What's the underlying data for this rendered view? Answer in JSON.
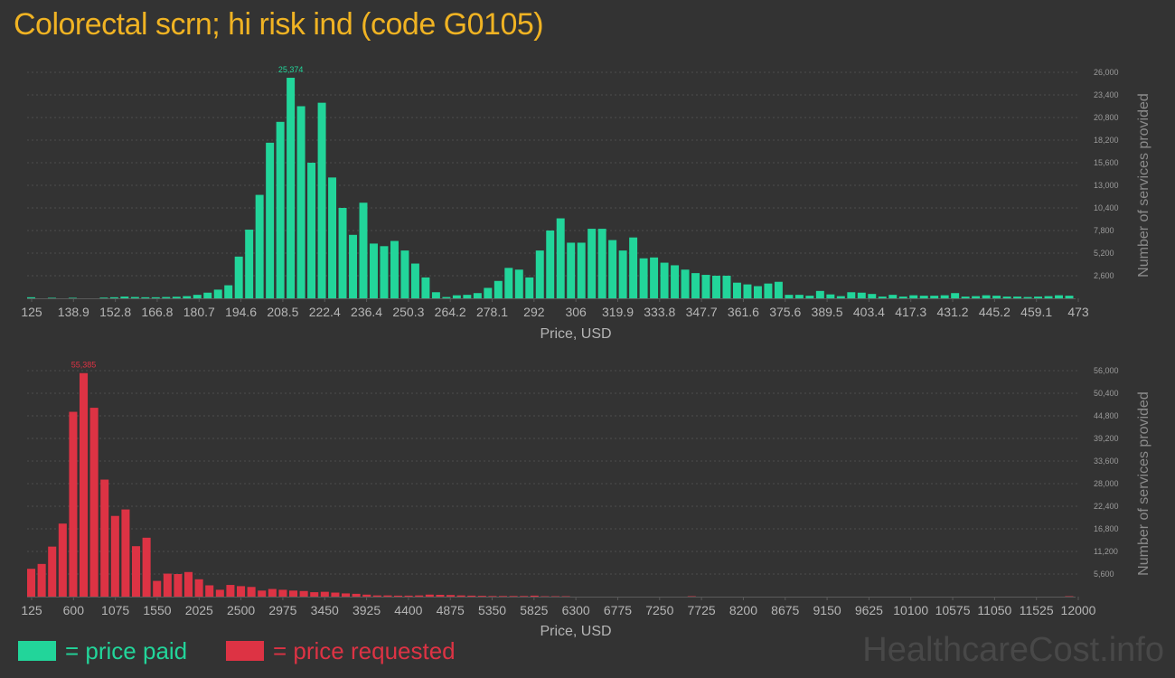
{
  "title": "Colorectal scrn; hi risk ind (code G0105)",
  "colors": {
    "paid": "#22d59a",
    "requested": "#dd3344",
    "title": "#f0b323",
    "grid": "#4e4e4e"
  },
  "legend": {
    "paid": "= price paid",
    "requested": "= price requested"
  },
  "watermark": "HealthcareCost.info",
  "chart_data": [
    {
      "type": "bar",
      "series_name": "price paid",
      "xlabel": "Price, USD",
      "ylabel": "Number of services provided",
      "x_ticks": [
        "125",
        "138.9",
        "152.8",
        "166.8",
        "180.7",
        "194.6",
        "208.5",
        "222.4",
        "236.4",
        "250.3",
        "264.2",
        "278.1",
        "292",
        "306",
        "319.9",
        "333.8",
        "347.7",
        "361.6",
        "375.6",
        "389.5",
        "403.4",
        "417.3",
        "431.2",
        "445.2",
        "459.1",
        "473"
      ],
      "y_ticks": [
        2600,
        5200,
        7800,
        10400,
        13000,
        15600,
        18200,
        20800,
        23400,
        26000
      ],
      "y_tick_labels": [
        "2,600",
        "5,200",
        "7,800",
        "10,400",
        "13,000",
        "15,600",
        "18,200",
        "20,800",
        "23,400",
        "26,000"
      ],
      "ylim": [
        0,
        26000
      ],
      "peak_label": "25,374",
      "values": [
        120,
        0,
        60,
        0,
        60,
        0,
        0,
        80,
        120,
        200,
        150,
        120,
        120,
        150,
        180,
        250,
        400,
        650,
        1000,
        1500,
        4800,
        7900,
        11900,
        17900,
        20300,
        25374,
        22100,
        15600,
        22500,
        13900,
        10400,
        7300,
        11000,
        6300,
        6000,
        6600,
        5500,
        4000,
        2400,
        700,
        150,
        350,
        400,
        600,
        1200,
        2000,
        3500,
        3300,
        2400,
        5500,
        7800,
        9200,
        6400,
        6400,
        8000,
        8000,
        6700,
        5500,
        7000,
        4600,
        4700,
        4100,
        3800,
        3300,
        2900,
        2700,
        2600,
        2600,
        1800,
        1600,
        1400,
        1700,
        1900,
        400,
        400,
        300,
        850,
        450,
        250,
        700,
        650,
        500,
        200,
        400,
        200,
        350,
        300,
        300,
        350,
        600,
        200,
        250,
        350,
        300,
        200,
        200,
        150,
        200,
        250,
        350,
        300
      ]
    },
    {
      "type": "bar",
      "series_name": "price requested",
      "xlabel": "Price, USD",
      "ylabel": "Number of services provided",
      "x_ticks": [
        "125",
        "600",
        "1075",
        "1550",
        "2025",
        "2500",
        "2975",
        "3450",
        "3925",
        "4400",
        "4875",
        "5350",
        "5825",
        "6300",
        "6775",
        "7250",
        "7725",
        "8200",
        "8675",
        "9150",
        "9625",
        "10100",
        "10575",
        "11050",
        "11525",
        "12000"
      ],
      "y_ticks": [
        5600,
        11200,
        16800,
        22400,
        28000,
        33600,
        39200,
        44800,
        50400,
        56000
      ],
      "y_tick_labels": [
        "5,600",
        "11,200",
        "16,800",
        "22,400",
        "28,000",
        "33,600",
        "39,200",
        "44,800",
        "50,400",
        "56,000"
      ],
      "ylim": [
        0,
        56000
      ],
      "peak_label": "55,385",
      "values": [
        6900,
        8100,
        12400,
        18100,
        45800,
        55385,
        46800,
        29000,
        20000,
        21600,
        12500,
        14600,
        3900,
        5700,
        5600,
        6100,
        4300,
        2800,
        1700,
        2900,
        2600,
        2400,
        1500,
        1900,
        1700,
        1500,
        1400,
        1100,
        1200,
        1000,
        800,
        700,
        500,
        300,
        300,
        250,
        250,
        300,
        500,
        450,
        400,
        300,
        250,
        200,
        150,
        150,
        150,
        150,
        250,
        100,
        100,
        100,
        0,
        0,
        0,
        0,
        0,
        0,
        0,
        0,
        0,
        0,
        0,
        100,
        0,
        0,
        0,
        0,
        0,
        0,
        0,
        0,
        0,
        0,
        0,
        0,
        0,
        0,
        0,
        0,
        0,
        0,
        0,
        0,
        0,
        0,
        0,
        0,
        0,
        0,
        0,
        0,
        0,
        0,
        0,
        0,
        0,
        0,
        0,
        100
      ]
    }
  ]
}
